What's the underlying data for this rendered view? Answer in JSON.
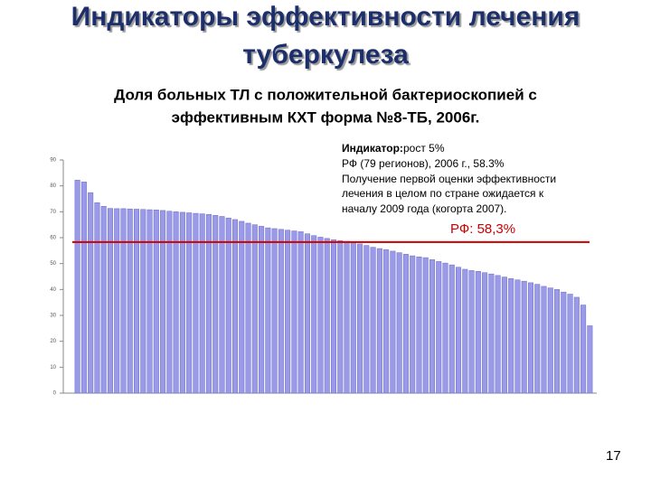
{
  "chart_data": {
    "type": "bar",
    "title": [
      "Индикаторы эффективности лечения",
      "туберкулеза"
    ],
    "subtitle": [
      "Доля больных ТЛ с положительной бактериоскопией с",
      "эффективным КХТ форма №8-ТБ, 2006г."
    ],
    "annotation": {
      "label": "Индикатор:",
      "lines": [
        "рост 5%",
        "РФ (79 регионов), 2006 г.,  58.3%",
        "Получение первой оценки эффективности",
        "лечения в целом по стране ожидается к",
        "началу 2009 года (когорта 2007)."
      ]
    },
    "reference": {
      "value": 58.3,
      "label": "РФ: 58,3%",
      "color": "#cc0000"
    },
    "categories": [
      null,
      null,
      null,
      null,
      null,
      null,
      null,
      null,
      null,
      null,
      null,
      null,
      null,
      null,
      null,
      null,
      null,
      null,
      null,
      null,
      null,
      null,
      null,
      null,
      null,
      null,
      null,
      null,
      null,
      null,
      null,
      null,
      null,
      null,
      null,
      null,
      null,
      null,
      null,
      null,
      null,
      null,
      null,
      null,
      null,
      null,
      null,
      null,
      null,
      null,
      null,
      null,
      null,
      null,
      null,
      null,
      null,
      null,
      null,
      null,
      null,
      null,
      null,
      null,
      null,
      null,
      null,
      null,
      null,
      null,
      null,
      null,
      null,
      null,
      null,
      null,
      null,
      null,
      null
    ],
    "values": [
      82.2,
      81.5,
      77.4,
      73.5,
      72.1,
      71.3,
      71.2,
      71.2,
      71.1,
      71.0,
      70.9,
      70.8,
      70.7,
      70.5,
      70.2,
      70.0,
      69.8,
      69.6,
      69.4,
      69.2,
      69.0,
      68.6,
      68.2,
      67.6,
      67.0,
      66.3,
      65.6,
      65.0,
      64.4,
      63.8,
      63.5,
      63.2,
      62.9,
      62.6,
      62.3,
      61.5,
      60.8,
      60.2,
      59.7,
      59.2,
      58.9,
      58.6,
      58.3,
      57.6,
      57.0,
      56.3,
      55.8,
      55.4,
      54.8,
      54.2,
      53.6,
      53.0,
      52.6,
      52.3,
      51.5,
      50.8,
      50.2,
      49.5,
      48.6,
      47.8,
      47.3,
      47.0,
      46.5,
      46.0,
      45.4,
      44.8,
      44.2,
      43.7,
      43.2,
      42.6,
      42.0,
      41.2,
      40.6,
      40.0,
      39.0,
      38.2,
      37.0,
      34.0,
      26.0
    ],
    "color": "#9a9ae8",
    "ylim": [
      0,
      90
    ],
    "yticks": [
      0,
      10,
      20,
      30,
      40,
      50,
      60,
      70,
      80,
      90
    ],
    "grid": false
  },
  "page_number": "17"
}
